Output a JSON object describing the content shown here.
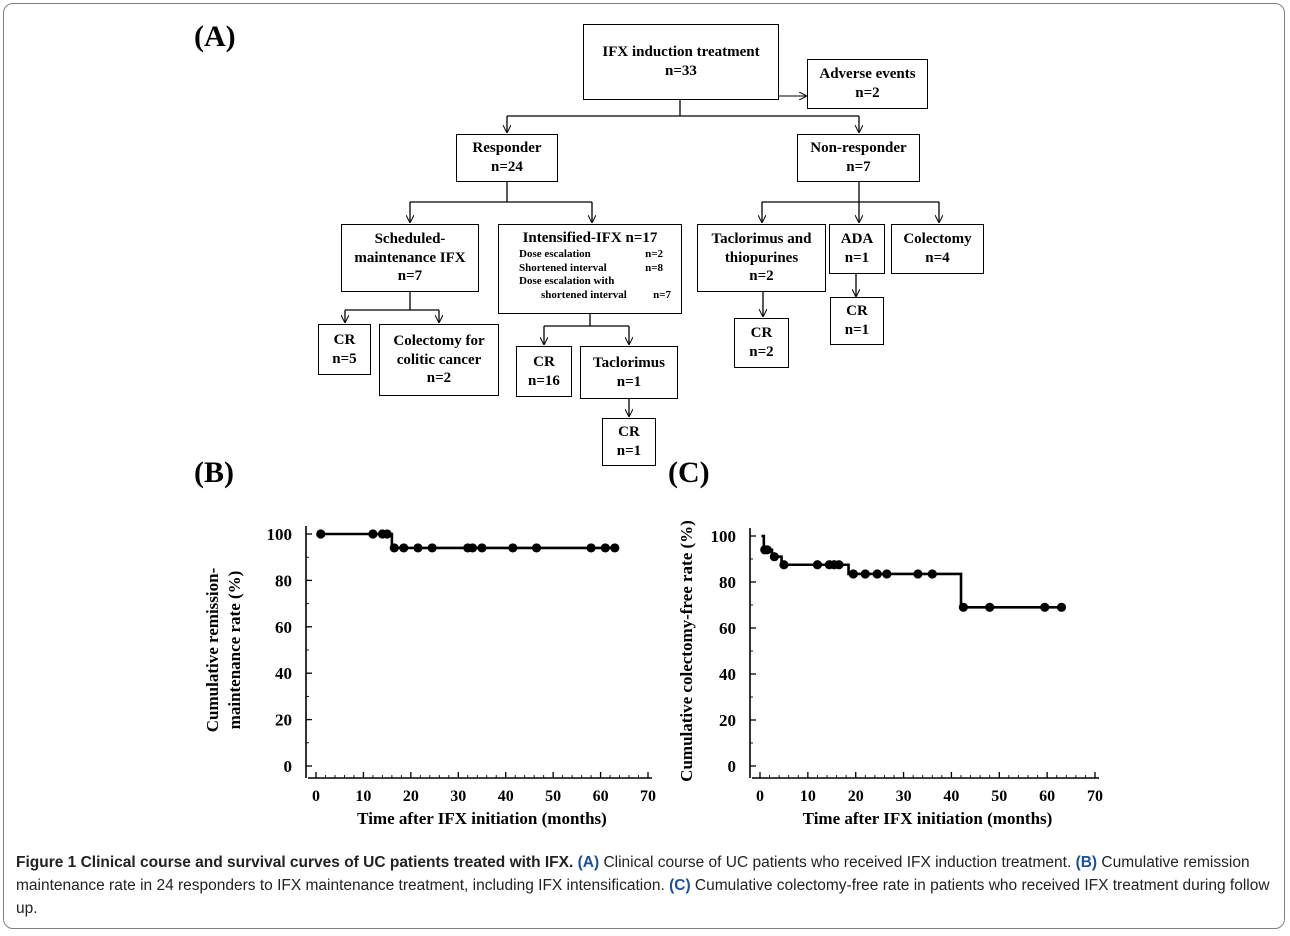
{
  "panels": {
    "a": "(A)",
    "b": "(B)",
    "c": "(C)"
  },
  "flow": {
    "induction": [
      "IFX induction treatment",
      "n=33"
    ],
    "adverse": [
      "Adverse events",
      "n=2"
    ],
    "responder": [
      "Responder",
      "n=24"
    ],
    "nonresponder": [
      "Non-responder",
      "n=7"
    ],
    "scheduled": [
      "Scheduled-",
      "maintenance IFX",
      "n=7"
    ],
    "intensified": {
      "title": "Intensified-IFX n=17",
      "rows": [
        {
          "label": "Dose escalation",
          "n": "n=2"
        },
        {
          "label": "Shortened interval",
          "n": "n=8"
        },
        {
          "label": "Dose escalation with",
          "n": ""
        },
        {
          "label": "shortened interval",
          "n": "n=7"
        }
      ]
    },
    "taclo_thio": [
      "Taclorimus and",
      "thiopurines",
      "n=2"
    ],
    "ada": [
      "ADA",
      "n=1"
    ],
    "colectomy4": [
      "Colectomy",
      "n=4"
    ],
    "cr5": [
      "CR",
      "n=5"
    ],
    "colectomy_cancer": [
      "Colectomy for",
      "colitic cancer",
      "n=2"
    ],
    "cr16": [
      "CR",
      "n=16"
    ],
    "taclorimus": [
      "Taclorimus",
      "n=1"
    ],
    "cr1_taclo": [
      "CR",
      "n=1"
    ],
    "cr2": [
      "CR",
      "n=2"
    ],
    "cr1_ada": [
      "CR",
      "n=1"
    ]
  },
  "chart_data": [
    {
      "type": "line",
      "panel": "(B)",
      "title": "",
      "xlabel": "Time after IFX initiation (months)",
      "ylabel_lines": [
        "Cumulative remission-",
        "maintenance rate (%)"
      ],
      "xlim": [
        0,
        70
      ],
      "ylim": [
        0,
        100
      ],
      "xticks": [
        0,
        10,
        20,
        30,
        40,
        50,
        60,
        70
      ],
      "yticks": [
        0,
        20,
        40,
        60,
        80,
        100
      ],
      "step": [
        [
          0.5,
          100
        ],
        [
          16,
          100
        ],
        [
          16,
          94
        ],
        [
          63,
          94
        ]
      ],
      "censored": [
        [
          1,
          100
        ],
        [
          12,
          100
        ],
        [
          14,
          100
        ],
        [
          15,
          100
        ],
        [
          16.5,
          94
        ],
        [
          18.5,
          94
        ],
        [
          21.5,
          94
        ],
        [
          24.5,
          94
        ],
        [
          32,
          94
        ],
        [
          33,
          94
        ],
        [
          35,
          94
        ],
        [
          41.5,
          94
        ],
        [
          46.5,
          94
        ],
        [
          58,
          94
        ],
        [
          61,
          94
        ],
        [
          63,
          94
        ]
      ]
    },
    {
      "type": "line",
      "panel": "(C)",
      "title": "",
      "xlabel": "Time after IFX initiation (months)",
      "ylabel_lines": [
        "Cumulative colectomy-free rate (%)"
      ],
      "xlim": [
        0,
        70
      ],
      "ylim": [
        0,
        100
      ],
      "xticks": [
        0,
        10,
        20,
        30,
        40,
        50,
        60,
        70
      ],
      "yticks": [
        0,
        20,
        40,
        60,
        80,
        100
      ],
      "step": [
        [
          0.3,
          100
        ],
        [
          0.8,
          100
        ],
        [
          0.8,
          94
        ],
        [
          2.5,
          94
        ],
        [
          2.5,
          91
        ],
        [
          4.5,
          91
        ],
        [
          4.5,
          87.5
        ],
        [
          18.5,
          87.5
        ],
        [
          18.5,
          83.5
        ],
        [
          42,
          83.5
        ],
        [
          42,
          69
        ],
        [
          63,
          69
        ]
      ],
      "censored": [
        [
          1,
          94
        ],
        [
          1.5,
          94
        ],
        [
          3,
          91
        ],
        [
          5,
          87.5
        ],
        [
          12,
          87.5
        ],
        [
          14.5,
          87.5
        ],
        [
          15.5,
          87.5
        ],
        [
          16.5,
          87.5
        ],
        [
          19.5,
          83.5
        ],
        [
          22,
          83.5
        ],
        [
          24.5,
          83.5
        ],
        [
          26.5,
          83.5
        ],
        [
          33,
          83.5
        ],
        [
          36,
          83.5
        ],
        [
          42.5,
          69
        ],
        [
          48,
          69
        ],
        [
          59.5,
          69
        ],
        [
          63,
          69
        ]
      ]
    }
  ],
  "caption": {
    "title": "Figure 1 Clinical course and survival curves of UC patients treated with IFX.",
    "a_tag": "(A)",
    "a_text": " Clinical course of UC patients who received IFX induction treatment. ",
    "b_tag": "(B)",
    "b_text": " Cumulative remission maintenance rate in 24 responders to IFX maintenance treatment, including IFX intensification. ",
    "c_tag": "(C)",
    "c_text": " Cumulative colectomy-free rate in patients who received IFX treatment during follow up."
  }
}
